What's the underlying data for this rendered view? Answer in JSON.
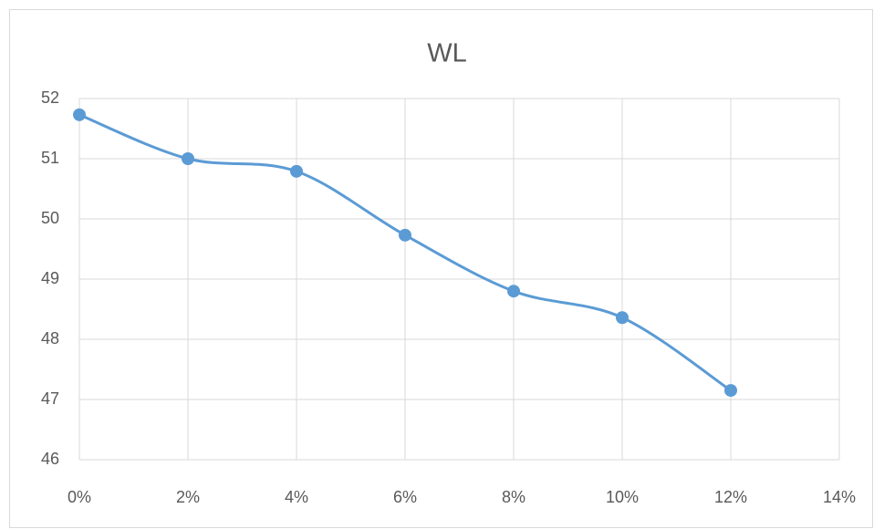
{
  "chart_data": {
    "type": "line",
    "title": "WL",
    "x": [
      0,
      2,
      4,
      6,
      8,
      10,
      12
    ],
    "series": [
      {
        "name": "WL",
        "color": "#5b9bd5",
        "values": [
          51.73,
          51.0,
          50.79,
          49.73,
          48.8,
          48.36,
          47.15
        ]
      }
    ],
    "xlim": [
      0,
      14
    ],
    "xticks": [
      {
        "value": 0,
        "label": "0%"
      },
      {
        "value": 2,
        "label": "2%"
      },
      {
        "value": 4,
        "label": "4%"
      },
      {
        "value": 6,
        "label": "6%"
      },
      {
        "value": 8,
        "label": "8%"
      },
      {
        "value": 10,
        "label": "10%"
      },
      {
        "value": 12,
        "label": "12%"
      },
      {
        "value": 14,
        "label": "14%"
      }
    ],
    "ylim": [
      46,
      52
    ],
    "yticks": [
      46,
      47,
      48,
      49,
      50,
      51,
      52
    ],
    "grid": true,
    "smooth": true
  }
}
